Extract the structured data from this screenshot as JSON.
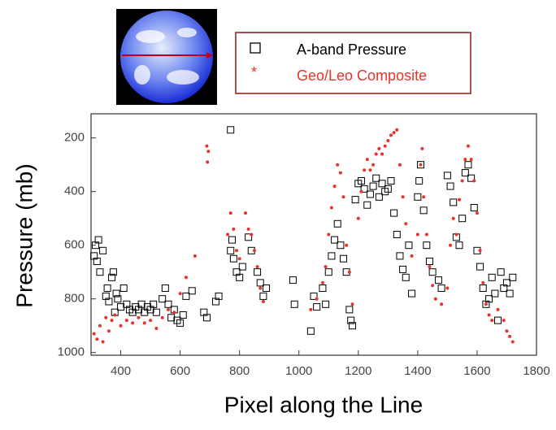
{
  "chart_data": {
    "type": "scatter",
    "x_label": "Pixel along the Line",
    "y_label": "Pressure (mb)",
    "xlim": [
      300,
      1800
    ],
    "xticks": [
      400,
      600,
      800,
      1000,
      1200,
      1400,
      1600,
      1800
    ],
    "ylim": [
      1010,
      110
    ],
    "yticks": [
      200,
      400,
      600,
      800,
      1000
    ],
    "grid": false,
    "legend": "top",
    "series": [
      {
        "name": "A-band Pressure",
        "color": "#000000",
        "marker": "square",
        "x": [
          310,
          315,
          320,
          325,
          330,
          340,
          350,
          355,
          360,
          370,
          375,
          380,
          385,
          390,
          400,
          410,
          420,
          430,
          440,
          450,
          460,
          470,
          480,
          490,
          500,
          510,
          520,
          540,
          550,
          560,
          570,
          580,
          590,
          600,
          610,
          620,
          640,
          680,
          690,
          720,
          730,
          770,
          770,
          775,
          780,
          790,
          800,
          810,
          830,
          840,
          860,
          870,
          880,
          890,
          980,
          985,
          1040,
          1050,
          1060,
          1080,
          1090,
          1100,
          1110,
          1120,
          1130,
          1140,
          1150,
          1160,
          1170,
          1175,
          1180,
          1190,
          1200,
          1210,
          1220,
          1230,
          1240,
          1250,
          1260,
          1270,
          1280,
          1290,
          1300,
          1310,
          1320,
          1330,
          1340,
          1350,
          1360,
          1370,
          1380,
          1400,
          1405,
          1410,
          1420,
          1430,
          1440,
          1450,
          1470,
          1480,
          1500,
          1510,
          1520,
          1530,
          1540,
          1550,
          1560,
          1570,
          1580,
          1590,
          1600,
          1610,
          1620,
          1630,
          1640,
          1650,
          1660,
          1670,
          1680,
          1690,
          1700,
          1710,
          1720
        ],
        "values": [
          640,
          600,
          660,
          580,
          700,
          620,
          790,
          760,
          810,
          720,
          700,
          850,
          780,
          800,
          830,
          760,
          820,
          840,
          850,
          830,
          840,
          820,
          850,
          830,
          840,
          820,
          850,
          800,
          760,
          820,
          870,
          840,
          880,
          890,
          860,
          790,
          770,
          850,
          870,
          810,
          790,
          170,
          620,
          580,
          650,
          700,
          720,
          680,
          570,
          620,
          700,
          740,
          790,
          760,
          730,
          820,
          920,
          790,
          830,
          760,
          820,
          700,
          640,
          580,
          520,
          600,
          650,
          700,
          840,
          880,
          900,
          430,
          370,
          360,
          390,
          450,
          410,
          380,
          350,
          420,
          370,
          400,
          390,
          360,
          480,
          560,
          640,
          690,
          720,
          600,
          780,
          420,
          360,
          300,
          470,
          600,
          660,
          700,
          730,
          760,
          340,
          380,
          440,
          570,
          600,
          500,
          330,
          300,
          350,
          460,
          620,
          680,
          760,
          820,
          800,
          720,
          780,
          880,
          700,
          760,
          740,
          780,
          720
        ]
      },
      {
        "name": "Geo/Leo Composite",
        "color": "#e8322b",
        "marker": "star",
        "x": [
          310,
          320,
          330,
          340,
          350,
          360,
          370,
          380,
          400,
          420,
          440,
          460,
          480,
          500,
          520,
          540,
          560,
          580,
          600,
          620,
          650,
          690,
          692,
          695,
          760,
          770,
          780,
          790,
          800,
          820,
          830,
          840,
          850,
          860,
          870,
          880,
          1040,
          1060,
          1080,
          1090,
          1100,
          1110,
          1120,
          1130,
          1140,
          1150,
          1160,
          1170,
          1180,
          1200,
          1210,
          1220,
          1230,
          1240,
          1250,
          1260,
          1270,
          1280,
          1290,
          1300,
          1310,
          1320,
          1330,
          1340,
          1350,
          1360,
          1380,
          1400,
          1410,
          1415,
          1420,
          1430,
          1440,
          1450,
          1460,
          1480,
          1500,
          1510,
          1520,
          1530,
          1540,
          1550,
          1560,
          1570,
          1580,
          1590,
          1600,
          1610,
          1620,
          1630,
          1640,
          1650,
          1670,
          1690,
          1700,
          1710,
          1720
        ],
        "values": [
          930,
          950,
          900,
          960,
          870,
          920,
          880,
          860,
          900,
          880,
          890,
          870,
          890,
          880,
          910,
          870,
          840,
          850,
          780,
          720,
          640,
          230,
          290,
          250,
          560,
          480,
          540,
          620,
          650,
          480,
          540,
          560,
          620,
          680,
          760,
          810,
          840,
          800,
          740,
          680,
          560,
          460,
          380,
          300,
          330,
          420,
          600,
          700,
          820,
          500,
          400,
          320,
          280,
          320,
          300,
          260,
          240,
          260,
          230,
          210,
          190,
          180,
          170,
          300,
          420,
          520,
          640,
          560,
          300,
          240,
          420,
          560,
          680,
          750,
          800,
          820,
          760,
          600,
          500,
          560,
          430,
          360,
          280,
          230,
          280,
          360,
          480,
          620,
          740,
          820,
          860,
          880,
          840,
          880,
          920,
          940,
          960
        ]
      }
    ]
  }
}
